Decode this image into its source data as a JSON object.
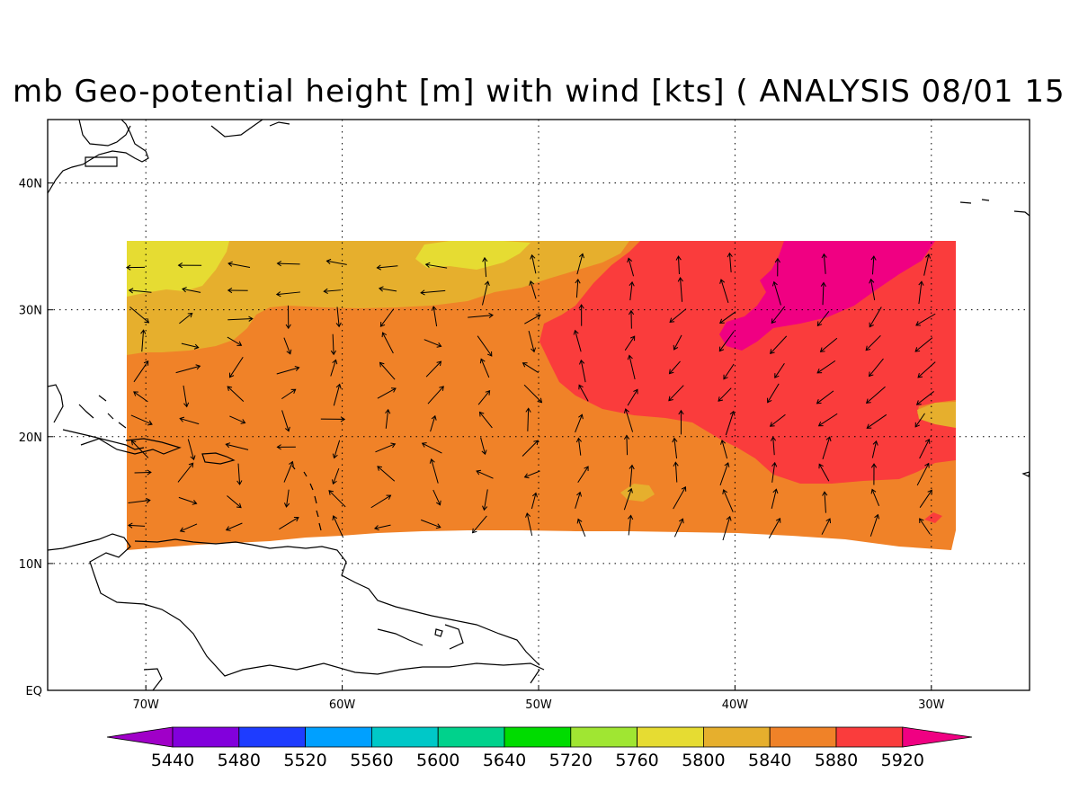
{
  "title": "mb Geo-potential height [m] with wind [kts] ( ANALYSIS 08/01 15",
  "axes": {
    "lon_ticks": [
      {
        "lon": -70,
        "label": "70W"
      },
      {
        "lon": -60,
        "label": "60W"
      },
      {
        "lon": -50,
        "label": "50W"
      },
      {
        "lon": -40,
        "label": "40W"
      },
      {
        "lon": -30,
        "label": "30W"
      }
    ],
    "lat_ticks": [
      {
        "lat": 0,
        "label": "EQ"
      },
      {
        "lat": 10,
        "label": "10N"
      },
      {
        "lat": 20,
        "label": "20N"
      },
      {
        "lat": 30,
        "label": "30N"
      },
      {
        "lat": 40,
        "label": "40N"
      }
    ],
    "lon_range": [
      -75,
      -25
    ],
    "lat_range": [
      0,
      45
    ],
    "grid": "dotted"
  },
  "colorbar": {
    "colors": [
      "#a000c8",
      "#8200dc",
      "#1e3cff",
      "#00a0ff",
      "#00c8c8",
      "#00d28c",
      "#00dc00",
      "#a0e632",
      "#e6dc32",
      "#e6af2d",
      "#f08228",
      "#fa3c3c",
      "#f00082"
    ],
    "labels": [
      "5440",
      "5480",
      "5520",
      "5560",
      "5600",
      "5640",
      "5720",
      "5760",
      "5800",
      "5840",
      "5880",
      "5920"
    ]
  },
  "field_colors": {
    "h5800": "#e6dc32",
    "h5840": "#e6af2d",
    "h5880": "#f08228",
    "h5920": "#fa3c3c",
    "h5960": "#f00082"
  }
}
